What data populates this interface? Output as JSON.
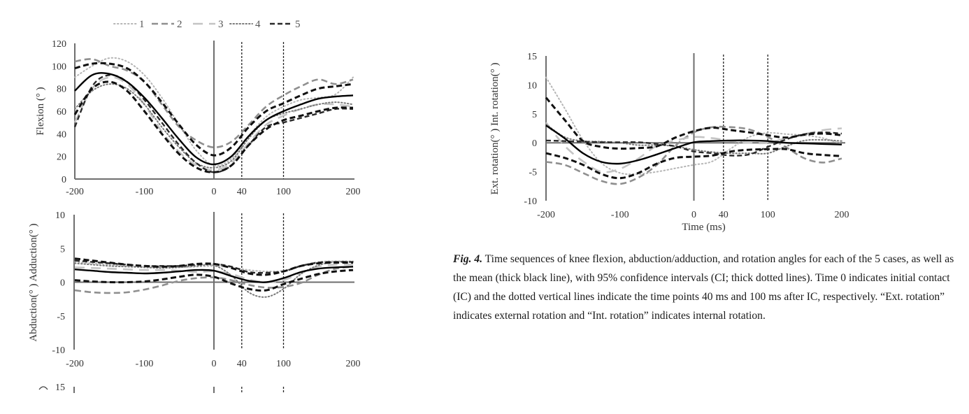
{
  "legend": [
    "1",
    "2",
    "3",
    "4",
    "5"
  ],
  "colors": {
    "case1": "#b5b5b5",
    "case2": "#8f8f8f",
    "case3": "#c4c4c4",
    "case4": "#7a7a7a",
    "case5": "#2a2a2a",
    "mean": "#000000",
    "ci": "#111111",
    "axis": "#6e6e6e"
  },
  "caption": {
    "fig_label": "Fig. 4.",
    "text": " Time sequences of knee flexion, abduction/adduction, and rotation angles for each of the 5 cases, as well as the mean (thick black line), with 95% confidence intervals (CI; thick dotted lines). Time 0 indicates initial contact (IC) and the dotted vertical lines indicate the time points 40 ms and 100 ms after IC, respectively. “Ext. rotation” indicates external rotation and “Int. rotation” indicates internal rotation."
  },
  "chart_data": [
    {
      "type": "line",
      "name": "flexion",
      "ylabel": "Flexion (°  )",
      "xlabel": "",
      "xlim": [
        -200,
        200
      ],
      "ylim": [
        0,
        120
      ],
      "xticks": [
        "-200",
        "-100",
        "0",
        "40",
        "100",
        "200"
      ],
      "xtick_values": [
        -200,
        -100,
        0,
        40,
        100,
        200
      ],
      "yticks": [
        "0",
        "20",
        "40",
        "60",
        "80",
        "100",
        "120"
      ],
      "ytick_values": [
        0,
        20,
        40,
        60,
        80,
        100,
        120
      ],
      "vlines": [
        0,
        40,
        100
      ],
      "x": [
        -200,
        -175,
        -150,
        -125,
        -100,
        -75,
        -50,
        -25,
        0,
        25,
        50,
        75,
        100,
        125,
        150,
        175,
        200
      ],
      "series": [
        {
          "name": "1",
          "values": [
            90,
            100,
            107,
            104,
            92,
            72,
            48,
            25,
            12,
            18,
            38,
            55,
            64,
            70,
            72,
            75,
            90
          ]
        },
        {
          "name": "2",
          "values": [
            104,
            106,
            100,
            96,
            86,
            66,
            46,
            34,
            28,
            33,
            48,
            64,
            74,
            82,
            88,
            84,
            88
          ]
        },
        {
          "name": "3",
          "values": [
            50,
            80,
            90,
            84,
            66,
            42,
            24,
            12,
            8,
            14,
            32,
            48,
            56,
            62,
            66,
            66,
            64
          ]
        },
        {
          "name": "4",
          "values": [
            62,
            78,
            84,
            80,
            66,
            46,
            28,
            14,
            10,
            16,
            36,
            52,
            58,
            62,
            66,
            68,
            66
          ]
        },
        {
          "name": "5",
          "values": [
            46,
            82,
            92,
            86,
            70,
            50,
            30,
            14,
            6,
            12,
            30,
            46,
            50,
            54,
            58,
            62,
            62
          ]
        },
        {
          "name": "mean",
          "values": [
            78,
            92,
            93,
            86,
            72,
            54,
            35,
            19,
            13,
            20,
            38,
            52,
            60,
            66,
            71,
            73,
            74
          ]
        },
        {
          "name": "ci_upper",
          "values": [
            98,
            102,
            102,
            98,
            86,
            68,
            48,
            30,
            21,
            28,
            46,
            60,
            67,
            74,
            80,
            82,
            84
          ]
        },
        {
          "name": "ci_lower",
          "values": [
            57,
            80,
            86,
            78,
            60,
            40,
            22,
            10,
            6,
            12,
            30,
            44,
            52,
            56,
            60,
            63,
            63
          ]
        }
      ]
    },
    {
      "type": "line",
      "name": "abduction",
      "ylabel": "Abduction(°  )  Adduction(°  )",
      "xlabel": "",
      "xlim": [
        -200,
        200
      ],
      "ylim": [
        -10,
        10
      ],
      "xticks": [
        "-200",
        "-100",
        "0",
        "40",
        "100",
        "200"
      ],
      "xtick_values": [
        -200,
        -100,
        0,
        40,
        100,
        200
      ],
      "yticks": [
        "-10",
        "-5",
        "0",
        "5",
        "10"
      ],
      "ytick_values": [
        -10,
        -5,
        0,
        5,
        10
      ],
      "vlines": [
        0,
        40,
        100
      ],
      "x": [
        -200,
        -175,
        -150,
        -125,
        -100,
        -75,
        -50,
        -25,
        0,
        25,
        50,
        75,
        100,
        125,
        150,
        175,
        200
      ],
      "series": [
        {
          "name": "1",
          "values": [
            3,
            2.8,
            2.6,
            2.4,
            2.3,
            2.2,
            2.2,
            2.3,
            2.4,
            2.2,
            1.8,
            1.6,
            1.7,
            2.4,
            3,
            3.1,
            3.1
          ]
        },
        {
          "name": "2",
          "values": [
            -1.2,
            -1.5,
            -1.6,
            -1.5,
            -1.1,
            -0.5,
            0.2,
            0.6,
            0.7,
            0.3,
            -0.4,
            -0.8,
            -0.7,
            -0.1,
            1.1,
            2,
            2.3
          ]
        },
        {
          "name": "3",
          "values": [
            2.2,
            2.1,
            2,
            1.9,
            1.8,
            1.8,
            1.7,
            1.5,
            1.6,
            1.2,
            0.4,
            0,
            0.3,
            1.4,
            2.3,
            2.6,
            2.6
          ]
        },
        {
          "name": "4",
          "values": [
            2.8,
            2.6,
            2.4,
            2.3,
            2.2,
            2.1,
            2.2,
            2.4,
            2.5,
            1,
            -1.5,
            -2.2,
            -1,
            1.2,
            2.5,
            3,
            3
          ]
        },
        {
          "name": "5",
          "values": [
            3.2,
            3,
            2.8,
            2.6,
            2.4,
            2.4,
            2.4,
            2.6,
            2.7,
            2.3,
            1.5,
            1.4,
            1.6,
            2.4,
            2.9,
            3,
            3
          ]
        },
        {
          "name": "mean",
          "values": [
            1.9,
            1.7,
            1.5,
            1.4,
            1.3,
            1.4,
            1.6,
            1.8,
            1.7,
            0.9,
            0.2,
            0,
            0.6,
            1.5,
            2.0,
            2.2,
            2.3
          ]
        },
        {
          "name": "ci_upper",
          "values": [
            3.5,
            3.2,
            2.9,
            2.6,
            2.4,
            2.3,
            2.4,
            2.7,
            2.7,
            2.1,
            1.3,
            1.1,
            1.6,
            2.4,
            2.8,
            2.9,
            2.9
          ]
        },
        {
          "name": "ci_lower",
          "values": [
            0.3,
            0.1,
            0,
            0,
            0.1,
            0.4,
            0.8,
            1.1,
            0.8,
            -0.2,
            -1,
            -1.2,
            -0.3,
            0.5,
            1.2,
            1.6,
            1.8
          ]
        }
      ]
    },
    {
      "type": "line",
      "name": "rotation",
      "ylabel": "Ext. rotation(°  )  Int. rotation(°  )",
      "xlabel": "Time (ms)",
      "xlim": [
        -200,
        200
      ],
      "ylim": [
        -10,
        15
      ],
      "xticks": [
        "-200",
        "-100",
        "0",
        "40",
        "100",
        "200"
      ],
      "xtick_values": [
        -200,
        -100,
        0,
        40,
        100,
        200
      ],
      "yticks": [
        "-10",
        "-5",
        "0",
        "5",
        "10",
        "15"
      ],
      "ytick_values": [
        -10,
        -5,
        0,
        5,
        10,
        15
      ],
      "vlines": [
        0,
        40,
        100
      ],
      "x": [
        -200,
        -175,
        -150,
        -125,
        -100,
        -75,
        -50,
        -25,
        0,
        25,
        50,
        75,
        100,
        125,
        150,
        175,
        200
      ],
      "series": [
        {
          "name": "1",
          "values": [
            11.3,
            6,
            0.5,
            -3.5,
            -5.2,
            -5.4,
            -5,
            -4.4,
            -3.8,
            -3.2,
            -1,
            1,
            1.7,
            1.5,
            1.3,
            0.8,
            -0.2
          ]
        },
        {
          "name": "2",
          "values": [
            -3.3,
            -3.8,
            -5.2,
            -6.6,
            -7.1,
            -6,
            -3.8,
            -0.5,
            1.8,
            2.7,
            2.7,
            2.3,
            1,
            -0.8,
            -2.7,
            -3.4,
            -2.7
          ]
        },
        {
          "name": "3",
          "values": [
            3.5,
            -0.5,
            -3.2,
            -5,
            -4.5,
            -2.7,
            -0.5,
            0.4,
            1,
            0.8,
            0.3,
            0,
            0,
            0.8,
            1.5,
            2.2,
            2.5
          ]
        },
        {
          "name": "4",
          "values": [
            3.2,
            1,
            0.3,
            0.2,
            0,
            -0.4,
            -0.4,
            -0.6,
            -1.2,
            -1.6,
            -1.8,
            -1.8,
            -1.8,
            -0.6,
            0.4,
            0.5,
            0.3
          ]
        },
        {
          "name": "5",
          "values": [
            0.4,
            0.3,
            0.2,
            0.1,
            0.1,
            0.1,
            -0.2,
            -0.6,
            -1.5,
            -1.8,
            -2.2,
            -2,
            -0.7,
            0.6,
            1.5,
            1.8,
            1.6
          ]
        },
        {
          "name": "mean",
          "values": [
            3,
            0.8,
            -1.8,
            -3.3,
            -3.6,
            -3,
            -2,
            -0.9,
            0.1,
            0.3,
            0.4,
            0.4,
            0.3,
            0,
            -0.1,
            -0.2,
            -0.3
          ]
        },
        {
          "name": "ci_upper",
          "values": [
            7.8,
            4,
            0.3,
            -0.7,
            -1,
            -0.9,
            -0.6,
            0.9,
            2,
            2.6,
            2.2,
            1.8,
            1.3,
            0.9,
            1.4,
            1.6,
            1.3
          ]
        },
        {
          "name": "ci_lower",
          "values": [
            -1.8,
            -2.6,
            -3.8,
            -5.4,
            -6.1,
            -5.2,
            -3.6,
            -2.6,
            -2.4,
            -2.2,
            -1.5,
            -1.2,
            -1.1,
            -1.1,
            -1.8,
            -2.1,
            -2.3
          ]
        }
      ]
    }
  ]
}
